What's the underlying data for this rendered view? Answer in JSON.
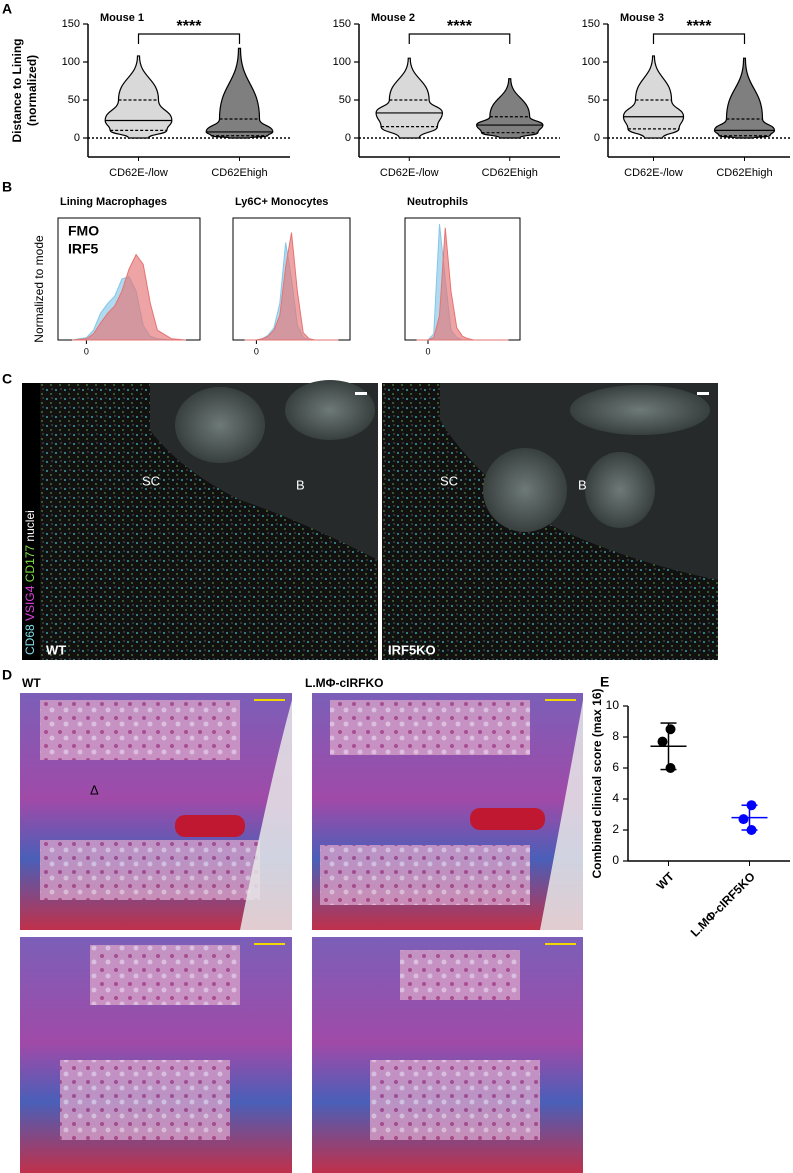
{
  "figure": {
    "panel_letters": [
      "A",
      "B",
      "C",
      "D",
      "E"
    ],
    "panel_c": {
      "stain_labels": [
        "CD68",
        "VSIG4",
        "CD177",
        "nuclei"
      ],
      "left": {
        "regions": [
          "SC",
          "B"
        ],
        "genotype": "WT"
      },
      "right": {
        "regions": [
          "SC",
          "B"
        ],
        "genotype": "IRF5KO"
      }
    },
    "panel_d": {
      "left_title": "WT",
      "right_title": "L.MΦ-cIRFKO",
      "marker": "Δ"
    }
  },
  "chart_data": [
    {
      "type": "violin",
      "title": "Mouse 1",
      "ylabel": [
        "Distance to Lining",
        "(normalized)"
      ],
      "categories": [
        "CD62E-/low",
        "CD62Ehigh"
      ],
      "colors": [
        "#d9d9d9",
        "#7f7f7f"
      ],
      "stats": {
        "min": [
          0,
          0
        ],
        "q1": [
          10,
          3
        ],
        "median": [
          23,
          8
        ],
        "q3": [
          50,
          25
        ],
        "max": [
          108,
          118
        ]
      },
      "ylim": [
        -25,
        150
      ],
      "yticks": [
        0,
        50,
        100,
        150
      ],
      "annotation": "****"
    },
    {
      "type": "violin",
      "title": "Mouse 2",
      "categories": [
        "CD62E-/low",
        "CD62Ehigh"
      ],
      "colors": [
        "#d9d9d9",
        "#7f7f7f"
      ],
      "stats": {
        "min": [
          0,
          0
        ],
        "q1": [
          15,
          7
        ],
        "median": [
          33,
          17
        ],
        "q3": [
          50,
          28
        ],
        "max": [
          105,
          78
        ]
      },
      "ylim": [
        -25,
        150
      ],
      "yticks": [
        0,
        50,
        100,
        150
      ],
      "annotation": "****"
    },
    {
      "type": "violin",
      "title": "Mouse 3",
      "categories": [
        "CD62E-/low",
        "CD62Ehigh"
      ],
      "colors": [
        "#d9d9d9",
        "#7f7f7f"
      ],
      "stats": {
        "min": [
          0,
          0
        ],
        "q1": [
          12,
          3
        ],
        "median": [
          28,
          10
        ],
        "q3": [
          50,
          25
        ],
        "max": [
          108,
          105
        ]
      },
      "ylim": [
        -25,
        150
      ],
      "yticks": [
        0,
        50,
        100,
        150
      ],
      "annotation": "****"
    },
    {
      "type": "area",
      "title": "Lining Macrophages",
      "ylabel": "Normalized to mode",
      "legend": true,
      "x": [
        -0.5,
        0,
        0.25,
        0.5,
        0.75,
        1,
        1.25,
        1.5,
        1.75,
        2,
        2.25,
        2.5,
        3,
        3.5
      ],
      "series": [
        {
          "name": "FMO",
          "color": "#85c6e6",
          "values": [
            0,
            2,
            8,
            22,
            30,
            36,
            50,
            52,
            40,
            12,
            3,
            1,
            0,
            0
          ]
        },
        {
          "name": "IRF5",
          "color": "#e57373",
          "values": [
            0,
            1,
            5,
            14,
            22,
            28,
            40,
            58,
            70,
            62,
            30,
            8,
            1,
            0
          ]
        }
      ],
      "xlim": [
        -1,
        4
      ],
      "ylim": [
        0,
        100
      ],
      "xticks": [
        0
      ]
    },
    {
      "type": "area",
      "title": "Ly6C+ Monocytes",
      "x": [
        -0.5,
        0,
        0.25,
        0.5,
        0.75,
        1,
        1.25,
        1.5,
        1.75,
        2,
        2.25,
        2.5,
        3,
        3.5
      ],
      "series": [
        {
          "color": "#85c6e6",
          "values": [
            0,
            0,
            1,
            4,
            10,
            30,
            80,
            50,
            12,
            2,
            0,
            0,
            0,
            0
          ]
        },
        {
          "color": "#e57373",
          "values": [
            0,
            0,
            1,
            3,
            8,
            20,
            60,
            88,
            40,
            6,
            1,
            0,
            0,
            0
          ]
        }
      ],
      "xlim": [
        -1,
        4
      ],
      "ylim": [
        0,
        100
      ],
      "xticks": [
        0
      ]
    },
    {
      "type": "area",
      "title": "Neutrophils",
      "x": [
        -0.5,
        0,
        0.25,
        0.5,
        0.75,
        1,
        1.25,
        1.5,
        1.75,
        2,
        2.25,
        2.5,
        3,
        3.5
      ],
      "series": [
        {
          "color": "#85c6e6",
          "values": [
            0,
            0,
            5,
            95,
            50,
            8,
            2,
            0,
            0,
            0,
            0,
            0,
            0,
            0
          ]
        },
        {
          "color": "#e57373",
          "values": [
            0,
            0,
            2,
            20,
            92,
            40,
            10,
            3,
            1,
            0,
            0,
            0,
            0,
            0
          ]
        }
      ],
      "xlim": [
        -1,
        4
      ],
      "ylim": [
        0,
        100
      ],
      "xticks": [
        0
      ]
    },
    {
      "type": "dot",
      "ylabel": "Combined clinical score (max 16)",
      "categories": [
        "WT",
        "L.MΦ-cIRF5KO"
      ],
      "colors": [
        "#000000",
        "#0000ff"
      ],
      "points": [
        [
          8.5,
          7.7,
          6.0
        ],
        [
          3.6,
          2.7,
          2.0
        ]
      ],
      "mean": [
        7.4,
        2.8
      ],
      "sd": [
        1.5,
        0.8
      ],
      "ylim": [
        0,
        10
      ],
      "yticks": [
        0,
        2,
        4,
        6,
        8,
        10
      ]
    }
  ]
}
